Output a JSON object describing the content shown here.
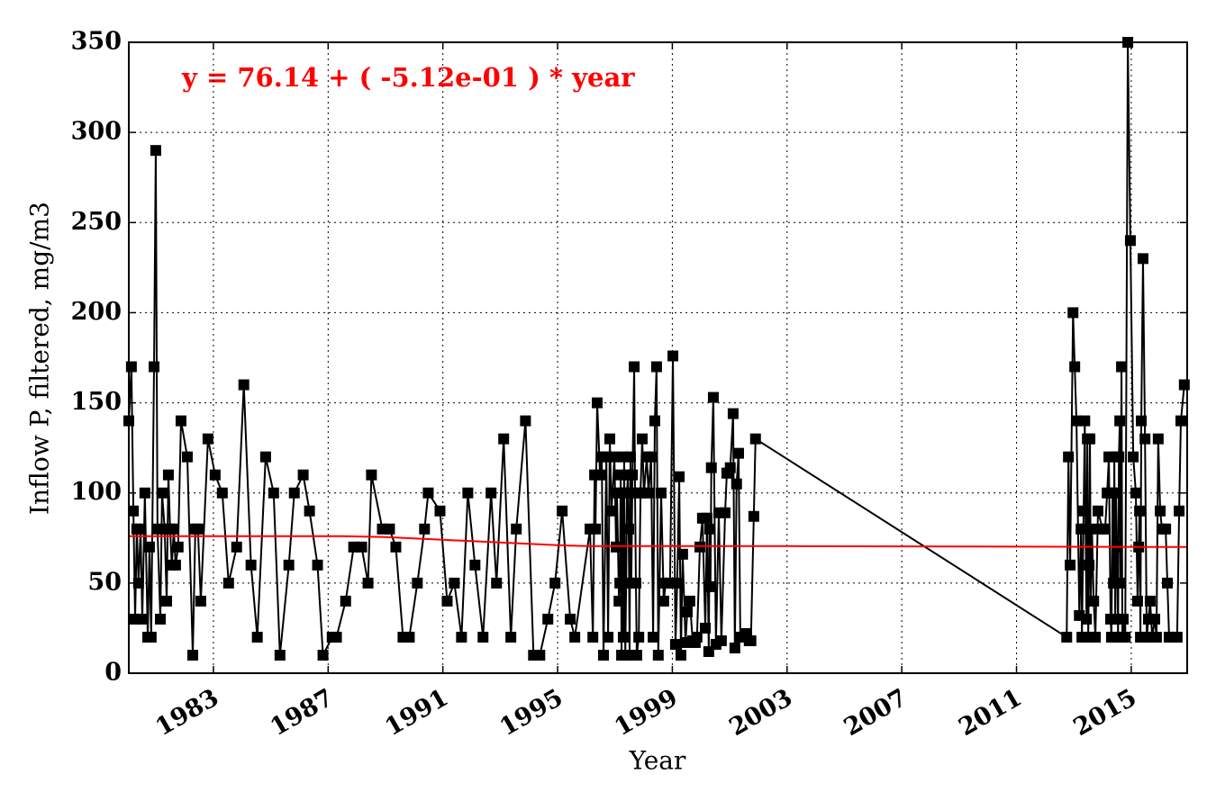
{
  "chart_data": {
    "type": "line",
    "annotation": "y = 76.14 + ( -5.12e-01 ) * year",
    "annotation_color": "#ff0000",
    "x_label": "Year",
    "y_label": "Inflow P, filtered, mg/m3",
    "xlim": [
      1980.05,
      2016.95
    ],
    "xticks": [
      1983,
      1987,
      1991,
      1995,
      1999,
      2003,
      2007,
      2011,
      2015
    ],
    "ylim": [
      0,
      350
    ],
    "yticks": [
      0,
      50,
      100,
      150,
      200,
      250,
      300,
      350
    ],
    "grid": true,
    "series": [
      {
        "color": "#000000",
        "marker": "square",
        "x": [
          1980.05,
          1980.14,
          1980.21,
          1980.27,
          1980.33,
          1980.39,
          1980.46,
          1980.52,
          1980.61,
          1980.71,
          1980.77,
          1980.83,
          1980.93,
          1980.99,
          1981.05,
          1981.15,
          1981.21,
          1981.3,
          1981.37,
          1981.43,
          1981.49,
          1981.55,
          1981.62,
          1981.68,
          1981.77,
          1981.87,
          1982.09,
          1982.28,
          1982.37,
          1982.46,
          1982.56,
          1982.81,
          1983.06,
          1983.31,
          1983.53,
          1983.81,
          1984.06,
          1984.31,
          1984.53,
          1984.82,
          1985.1,
          1985.32,
          1985.63,
          1985.82,
          1986.13,
          1986.35,
          1986.63,
          1986.82,
          1987.14,
          1987.29,
          1987.61,
          1987.89,
          1988.17,
          1988.39,
          1988.51,
          1988.89,
          1989.14,
          1989.36,
          1989.61,
          1989.83,
          1990.11,
          1990.36,
          1990.49,
          1990.9,
          1991.15,
          1991.4,
          1991.65,
          1991.87,
          1992.12,
          1992.4,
          1992.68,
          1992.87,
          1993.12,
          1993.37,
          1993.56,
          1993.88,
          1994.16,
          1994.38,
          1994.66,
          1994.91,
          1995.16,
          1995.44,
          1995.6,
          1996.13,
          1996.23,
          1996.29,
          1996.32,
          1996.38,
          1996.48,
          1996.54,
          1996.6,
          1996.7,
          1996.76,
          1996.82,
          1996.88,
          1996.98,
          1997.04,
          1997.07,
          1997.14,
          1997.17,
          1997.2,
          1997.23,
          1997.26,
          1997.29,
          1997.32,
          1997.36,
          1997.39,
          1997.42,
          1997.45,
          1997.48,
          1997.51,
          1997.54,
          1997.57,
          1997.61,
          1997.67,
          1997.7,
          1997.73,
          1997.76,
          1997.83,
          1997.89,
          1997.95,
          1998.01,
          1998.11,
          1998.17,
          1998.26,
          1998.33,
          1998.39,
          1998.45,
          1998.51,
          1998.61,
          1998.7,
          1998.77,
          1998.92,
          1999.02,
          1999.11,
          1999.17,
          1999.24,
          1999.3,
          1999.36,
          1999.46,
          1999.52,
          1999.61,
          1999.71,
          1999.8,
          1999.86,
          1999.96,
          2000.05,
          2000.15,
          2000.21,
          2000.27,
          2000.3,
          2000.33,
          2000.36,
          2000.43,
          2000.52,
          2000.62,
          2000.71,
          2000.84,
          2000.9,
          2000.96,
          2001.02,
          2001.12,
          2001.18,
          2001.24,
          2001.31,
          2001.37,
          2001.49,
          2001.59,
          2001.68,
          2001.74,
          2001.84,
          2001.9,
          2012.75,
          2012.81,
          2012.87,
          2012.97,
          2013.03,
          2013.09,
          2013.19,
          2013.25,
          2013.28,
          2013.34,
          2013.38,
          2013.41,
          2013.44,
          2013.47,
          2013.5,
          2013.53,
          2013.56,
          2013.59,
          2013.63,
          2013.69,
          2013.75,
          2013.84,
          2014.0,
          2014.09,
          2014.16,
          2014.22,
          2014.28,
          2014.31,
          2014.35,
          2014.38,
          2014.41,
          2014.44,
          2014.47,
          2014.5,
          2014.54,
          2014.57,
          2014.6,
          2014.63,
          2014.66,
          2014.69,
          2014.72,
          2014.79,
          2014.88,
          2014.97,
          2015.07,
          2015.16,
          2015.22,
          2015.26,
          2015.29,
          2015.32,
          2015.35,
          2015.41,
          2015.48,
          2015.54,
          2015.6,
          2015.66,
          2015.73,
          2015.82,
          2015.88,
          2015.94,
          2016.01,
          2016.07,
          2016.2,
          2016.26,
          2016.32,
          2016.45,
          2016.6,
          2016.67,
          2016.73,
          2016.85
        ],
        "values": [
          140,
          170,
          90,
          30,
          80,
          50,
          80,
          30,
          100,
          20,
          70,
          20,
          170,
          290,
          80,
          30,
          100,
          80,
          40,
          110,
          80,
          60,
          80,
          60,
          70,
          140,
          120,
          10,
          80,
          80,
          40,
          130,
          110,
          100,
          50,
          70,
          160,
          60,
          20,
          120,
          100,
          10,
          60,
          100,
          110,
          90,
          60,
          10,
          20,
          20,
          40,
          70,
          70,
          50,
          110,
          80,
          80,
          70,
          20,
          20,
          50,
          80,
          100,
          90,
          40,
          50,
          20,
          100,
          60,
          20,
          100,
          50,
          130,
          20,
          80,
          140,
          10,
          10,
          30,
          50,
          90,
          30,
          20,
          80,
          20,
          110,
          80,
          150,
          110,
          120,
          10,
          120,
          20,
          130,
          90,
          120,
          70,
          100,
          40,
          50,
          110,
          10,
          100,
          20,
          120,
          10,
          50,
          100,
          110,
          80,
          10,
          120,
          50,
          110,
          170,
          100,
          50,
          10,
          20,
          100,
          130,
          100,
          120,
          100,
          120,
          20,
          140,
          170,
          10,
          100,
          40,
          50,
          50,
          176,
          16,
          50,
          109,
          10,
          66,
          17,
          34,
          40,
          18,
          17,
          20,
          70,
          86,
          25,
          86,
          12,
          80,
          48,
          114,
          153,
          16,
          89,
          18,
          89,
          111,
          111,
          114,
          144,
          14,
          105,
          122,
          20,
          20,
          22,
          18,
          18,
          87,
          130,
          20,
          120,
          60,
          200,
          170,
          140,
          32,
          80,
          20,
          90,
          140,
          80,
          30,
          130,
          20,
          60,
          130,
          40,
          80,
          40,
          20,
          90,
          80,
          80,
          100,
          120,
          30,
          20,
          100,
          50,
          120,
          30,
          100,
          70,
          20,
          120,
          140,
          50,
          170,
          20,
          30,
          20,
          350,
          240,
          120,
          100,
          40,
          70,
          90,
          20,
          140,
          230,
          130,
          20,
          30,
          40,
          20,
          30,
          20,
          130,
          90,
          80,
          80,
          50,
          20,
          20,
          20,
          90,
          140,
          160
        ]
      },
      {
        "color": "#ff0000",
        "x": [
          1980.05,
          1987.5,
          1989,
          1991,
          1993,
          1995,
          1996,
          2003,
          2016.95
        ],
        "values": [
          76,
          76,
          75.5,
          74,
          72.5,
          71,
          70.5,
          70.5,
          70
        ]
      }
    ]
  }
}
